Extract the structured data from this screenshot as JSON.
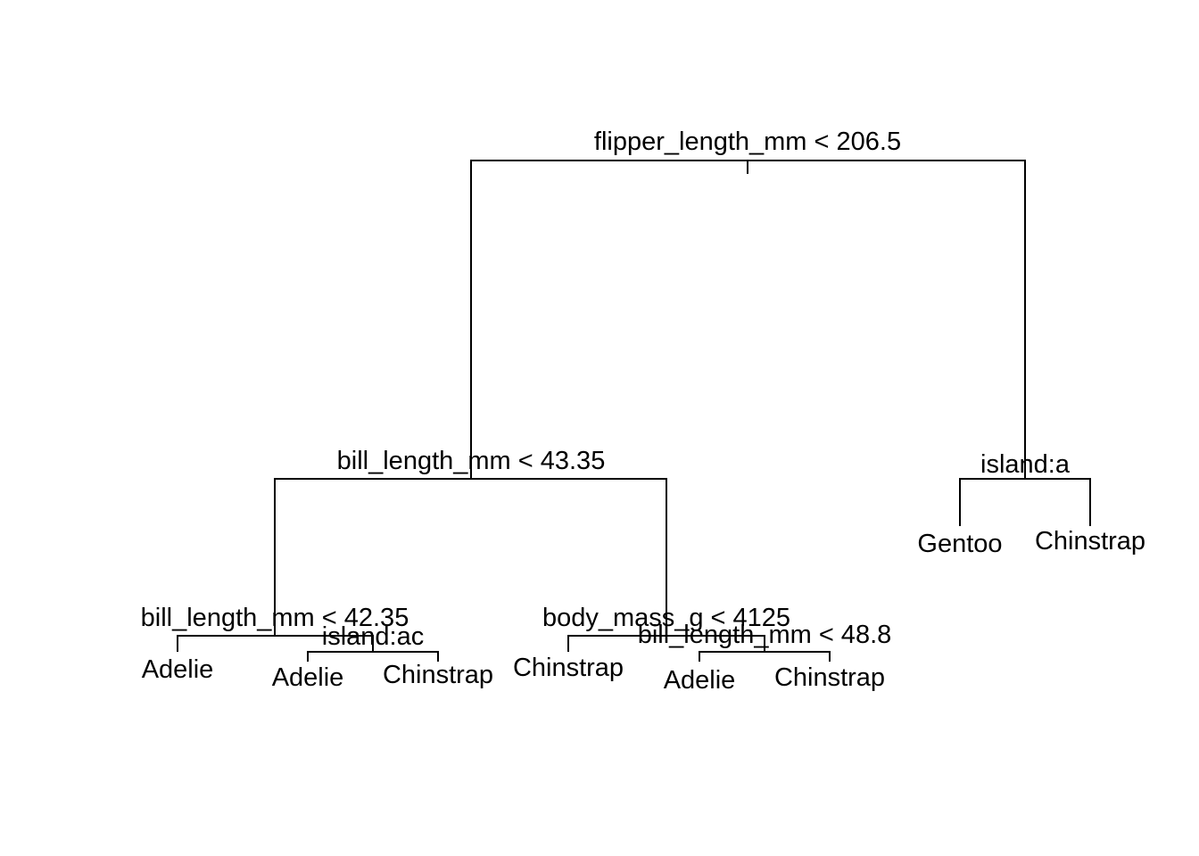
{
  "tree": {
    "root": {
      "split": "flipper_length_mm < 206.5",
      "left": {
        "split": "bill_length_mm < 43.35",
        "left": {
          "split": "bill_length_mm < 42.35",
          "left": {
            "leaf": "Adelie"
          },
          "right": {
            "split": "island:ac",
            "left": {
              "leaf": "Adelie"
            },
            "right": {
              "leaf": "Chinstrap"
            }
          }
        },
        "right": {
          "split": "body_mass_g < 4125",
          "left": {
            "leaf": "Chinstrap"
          },
          "right": {
            "split": "bill_length_mm < 48.8",
            "left": {
              "leaf": "Adelie"
            },
            "right": {
              "leaf": "Chinstrap"
            }
          }
        }
      },
      "right": {
        "split": "island:a",
        "left": {
          "leaf": "Gentoo"
        },
        "right": {
          "leaf": "Chinstrap"
        }
      }
    }
  }
}
